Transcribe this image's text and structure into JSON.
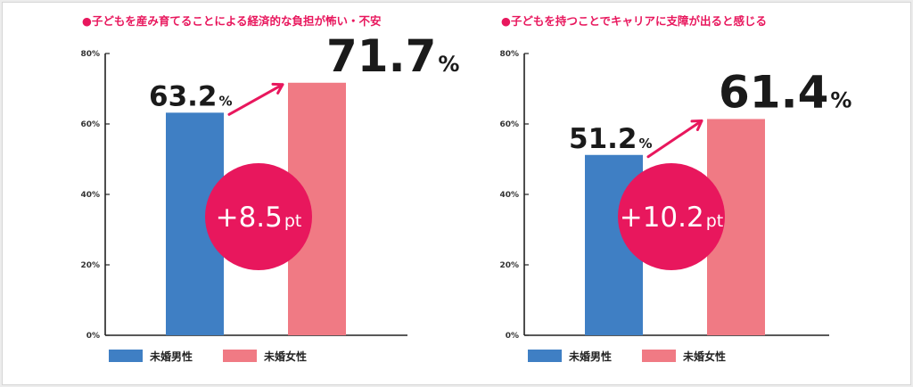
{
  "colors": {
    "male": "#3f7fc4",
    "female": "#f07a84",
    "accent": "#e8175d",
    "axis": "#222222"
  },
  "legend": {
    "male": "未婚男性",
    "female": "未婚女性"
  },
  "chart_data": [
    {
      "type": "bar",
      "title": "●子どもを産み育てることによる経済的な負担が怖い・不安",
      "categories": [
        "未婚男性",
        "未婚女性"
      ],
      "values": [
        63.2,
        71.7
      ],
      "value_labels": [
        {
          "num": "63.2",
          "unit": "%"
        },
        {
          "num": "71.7",
          "unit": "%"
        }
      ],
      "diff": {
        "num": "+8.5",
        "unit": "pt"
      },
      "ylim": [
        0,
        80
      ],
      "yticks": [
        0,
        20,
        40,
        60,
        80
      ],
      "ytick_labels": [
        "0%",
        "20%",
        "40%",
        "60%",
        "80%"
      ],
      "legend": "bottom-left",
      "grid": false
    },
    {
      "type": "bar",
      "title": "●子どもを持つことでキャリアに支障が出ると感じる",
      "categories": [
        "未婚男性",
        "未婚女性"
      ],
      "values": [
        51.2,
        61.4
      ],
      "value_labels": [
        {
          "num": "51.2",
          "unit": "%"
        },
        {
          "num": "61.4",
          "unit": "%"
        }
      ],
      "diff": {
        "num": "+10.2",
        "unit": "pt"
      },
      "ylim": [
        0,
        80
      ],
      "yticks": [
        0,
        20,
        40,
        60,
        80
      ],
      "ytick_labels": [
        "0%",
        "20%",
        "40%",
        "60%",
        "80%"
      ],
      "legend": "bottom-left",
      "grid": false
    }
  ]
}
